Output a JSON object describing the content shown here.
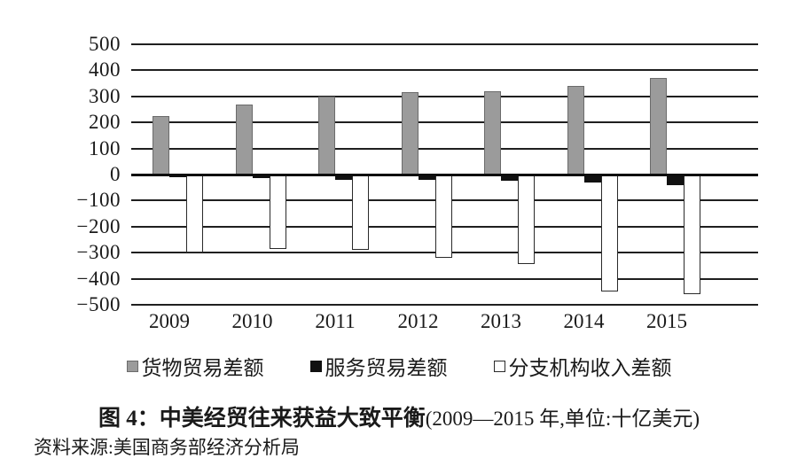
{
  "chart_data": {
    "type": "bar",
    "title_bold": "图 4：中美经贸往来获益大致平衡",
    "title_paren": "(2009—2015 年,单位:十亿美元)",
    "source": "资料来源:美国商务部经济分析局",
    "categories": [
      "2009",
      "2010",
      "2011",
      "2012",
      "2013",
      "2014",
      "2015"
    ],
    "series": [
      {
        "name": "货物贸易差额",
        "fill": "#9b9b9b",
        "border": "#6b6b6b",
        "values": [
          225,
          270,
          300,
          315,
          320,
          340,
          370
        ]
      },
      {
        "name": "服务贸易差额",
        "fill": "#111111",
        "border": "#111111",
        "values": [
          -10,
          -15,
          -20,
          -20,
          -25,
          -30,
          -40
        ]
      },
      {
        "name": "分支机构收入差额",
        "fill": "#ffffff",
        "border": "#2a2a2a",
        "values": [
          -300,
          -285,
          -290,
          -320,
          -345,
          -450,
          -460
        ]
      }
    ],
    "ylim": [
      -500,
      500
    ],
    "ytick_interval": 100,
    "yticks": [
      "500",
      "400",
      "300",
      "200",
      "100",
      "0",
      "−100",
      "−200",
      "−300",
      "−400",
      "−500"
    ],
    "grid": "horizontal",
    "legend_position": "bottom",
    "axis_color": "#1a1a1a"
  }
}
